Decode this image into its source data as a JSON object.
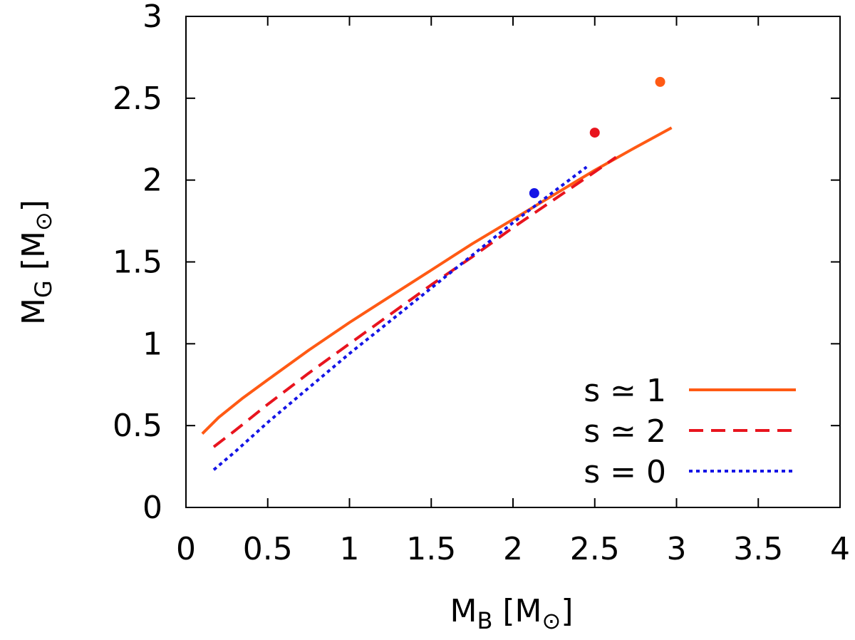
{
  "chart_data": {
    "type": "line",
    "xlabel": {
      "main": "M",
      "sub": "B",
      "unit_open": " [M",
      "unit_sub": "⊙",
      "unit_close": "]"
    },
    "ylabel": {
      "main": "M",
      "sub": "G",
      "unit_open": " [M",
      "unit_sub": "⊙",
      "unit_close": "]"
    },
    "xlim": [
      0,
      4
    ],
    "ylim": [
      0,
      3
    ],
    "xticks": [
      {
        "value": 0,
        "label": "0"
      },
      {
        "value": 0.5,
        "label": "0.5"
      },
      {
        "value": 1,
        "label": "1"
      },
      {
        "value": 1.5,
        "label": "1.5"
      },
      {
        "value": 2,
        "label": "2"
      },
      {
        "value": 2.5,
        "label": "2.5"
      },
      {
        "value": 3,
        "label": "3"
      },
      {
        "value": 3.5,
        "label": "3.5"
      },
      {
        "value": 4,
        "label": "4"
      }
    ],
    "yticks": [
      {
        "value": 0,
        "label": "0"
      },
      {
        "value": 0.5,
        "label": "0.5"
      },
      {
        "value": 1,
        "label": "1"
      },
      {
        "value": 1.5,
        "label": "1.5"
      },
      {
        "value": 2,
        "label": "2"
      },
      {
        "value": 2.5,
        "label": "2.5"
      },
      {
        "value": 3,
        "label": "3"
      }
    ],
    "grid": false,
    "legend_position": "bottom-right",
    "series": [
      {
        "name": "s ≃ 1",
        "color": "#ff5a14",
        "style": "solid",
        "x": [
          0.1,
          0.2,
          0.35,
          0.5,
          0.75,
          1.0,
          1.25,
          1.5,
          1.75,
          2.0,
          2.25,
          2.5,
          2.75,
          2.97
        ],
        "y": [
          0.45,
          0.55,
          0.67,
          0.78,
          0.96,
          1.13,
          1.29,
          1.45,
          1.61,
          1.76,
          1.91,
          2.06,
          2.2,
          2.32
        ],
        "marker": {
          "x": 2.9,
          "y": 2.6
        }
      },
      {
        "name": "s ≃ 2",
        "color": "#e8141e",
        "style": "dashed",
        "x": [
          0.17,
          0.3,
          0.5,
          0.75,
          1.0,
          1.25,
          1.5,
          1.75,
          2.0,
          2.25,
          2.5,
          2.63
        ],
        "y": [
          0.37,
          0.47,
          0.63,
          0.82,
          1.0,
          1.18,
          1.36,
          1.53,
          1.71,
          1.88,
          2.05,
          2.14
        ],
        "marker": {
          "x": 2.5,
          "y": 2.29
        }
      },
      {
        "name": "s = 0",
        "color": "#1414e6",
        "style": "dotted",
        "x": [
          0.17,
          0.3,
          0.5,
          0.75,
          1.0,
          1.25,
          1.5,
          1.75,
          2.0,
          2.25,
          2.45
        ],
        "y": [
          0.23,
          0.34,
          0.52,
          0.73,
          0.94,
          1.14,
          1.34,
          1.54,
          1.74,
          1.93,
          2.08
        ],
        "marker": {
          "x": 2.13,
          "y": 1.92
        }
      }
    ]
  }
}
